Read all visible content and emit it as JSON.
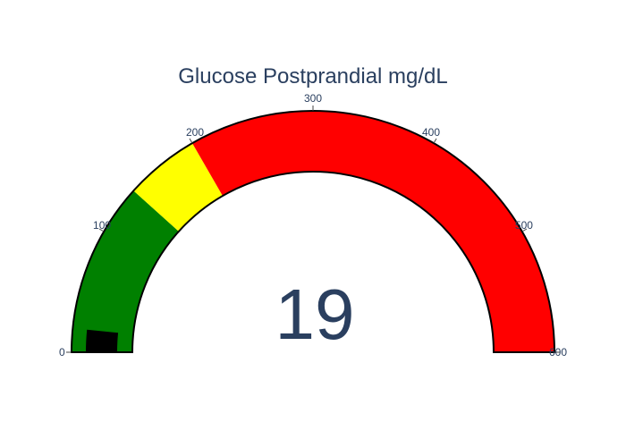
{
  "chart_data": {
    "type": "gauge",
    "title": "Glucose Postprandial mg/dL",
    "value": 19,
    "display_value": "19",
    "range": [
      0,
      600
    ],
    "ticks": [
      {
        "value": 0,
        "label": "0"
      },
      {
        "value": 100,
        "label": "100"
      },
      {
        "value": 200,
        "label": "200"
      },
      {
        "value": 300,
        "label": "300"
      },
      {
        "value": 400,
        "label": "400"
      },
      {
        "value": 500,
        "label": "500"
      },
      {
        "value": 600,
        "label": "600"
      }
    ],
    "steps": [
      {
        "range": [
          0,
          140
        ],
        "color": "#008000"
      },
      {
        "range": [
          140,
          200
        ],
        "color": "#ffff00"
      },
      {
        "range": [
          200,
          600
        ],
        "color": "#ff0000"
      }
    ],
    "bar_color": "#000000"
  }
}
